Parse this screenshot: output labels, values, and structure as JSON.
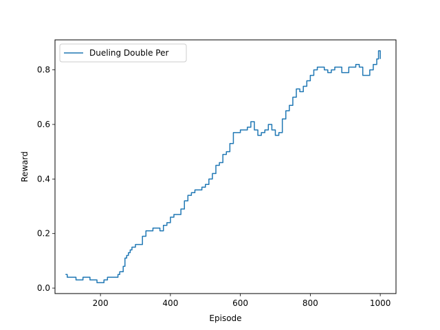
{
  "chart_data": {
    "type": "line",
    "title": "",
    "xlabel": "Episode",
    "ylabel": "Reward",
    "xlim": [
      70,
      1045
    ],
    "ylim": [
      -0.02,
      0.91
    ],
    "x_ticks": [
      200,
      400,
      600,
      800,
      1000
    ],
    "x_tick_labels": [
      "200",
      "400",
      "600",
      "800",
      "1000"
    ],
    "y_ticks": [
      0.0,
      0.2,
      0.4,
      0.6,
      0.8
    ],
    "y_tick_labels": [
      "0.0",
      "0.2",
      "0.4",
      "0.6",
      "0.8"
    ],
    "grid": false,
    "legend_position": "upper-left",
    "series": [
      {
        "name": "Dueling Double Per",
        "color": "#1f77b4",
        "x": [
          100,
          105,
          110,
          120,
          130,
          140,
          150,
          160,
          170,
          180,
          190,
          200,
          210,
          220,
          230,
          240,
          250,
          255,
          260,
          265,
          270,
          275,
          280,
          285,
          290,
          300,
          310,
          320,
          330,
          340,
          350,
          360,
          370,
          380,
          390,
          400,
          410,
          420,
          430,
          440,
          450,
          460,
          470,
          480,
          490,
          500,
          510,
          520,
          530,
          540,
          550,
          560,
          570,
          580,
          590,
          600,
          610,
          620,
          630,
          640,
          650,
          660,
          670,
          680,
          690,
          700,
          710,
          720,
          730,
          740,
          750,
          760,
          770,
          780,
          790,
          800,
          810,
          820,
          830,
          840,
          850,
          860,
          870,
          880,
          890,
          900,
          910,
          920,
          930,
          940,
          950,
          960,
          970,
          980,
          990,
          995,
          1000
        ],
        "y": [
          0.05,
          0.04,
          0.04,
          0.04,
          0.03,
          0.03,
          0.04,
          0.04,
          0.03,
          0.03,
          0.02,
          0.02,
          0.03,
          0.04,
          0.04,
          0.04,
          0.05,
          0.06,
          0.06,
          0.08,
          0.11,
          0.12,
          0.13,
          0.14,
          0.15,
          0.16,
          0.16,
          0.19,
          0.21,
          0.21,
          0.22,
          0.22,
          0.21,
          0.23,
          0.24,
          0.26,
          0.27,
          0.27,
          0.29,
          0.32,
          0.34,
          0.35,
          0.36,
          0.36,
          0.37,
          0.38,
          0.4,
          0.42,
          0.45,
          0.46,
          0.49,
          0.5,
          0.53,
          0.57,
          0.57,
          0.58,
          0.58,
          0.59,
          0.61,
          0.58,
          0.56,
          0.57,
          0.58,
          0.6,
          0.58,
          0.56,
          0.57,
          0.62,
          0.65,
          0.67,
          0.7,
          0.73,
          0.72,
          0.74,
          0.76,
          0.78,
          0.8,
          0.81,
          0.81,
          0.8,
          0.79,
          0.8,
          0.81,
          0.81,
          0.79,
          0.79,
          0.81,
          0.81,
          0.82,
          0.81,
          0.78,
          0.78,
          0.8,
          0.82,
          0.84,
          0.87,
          0.84
        ]
      }
    ]
  }
}
